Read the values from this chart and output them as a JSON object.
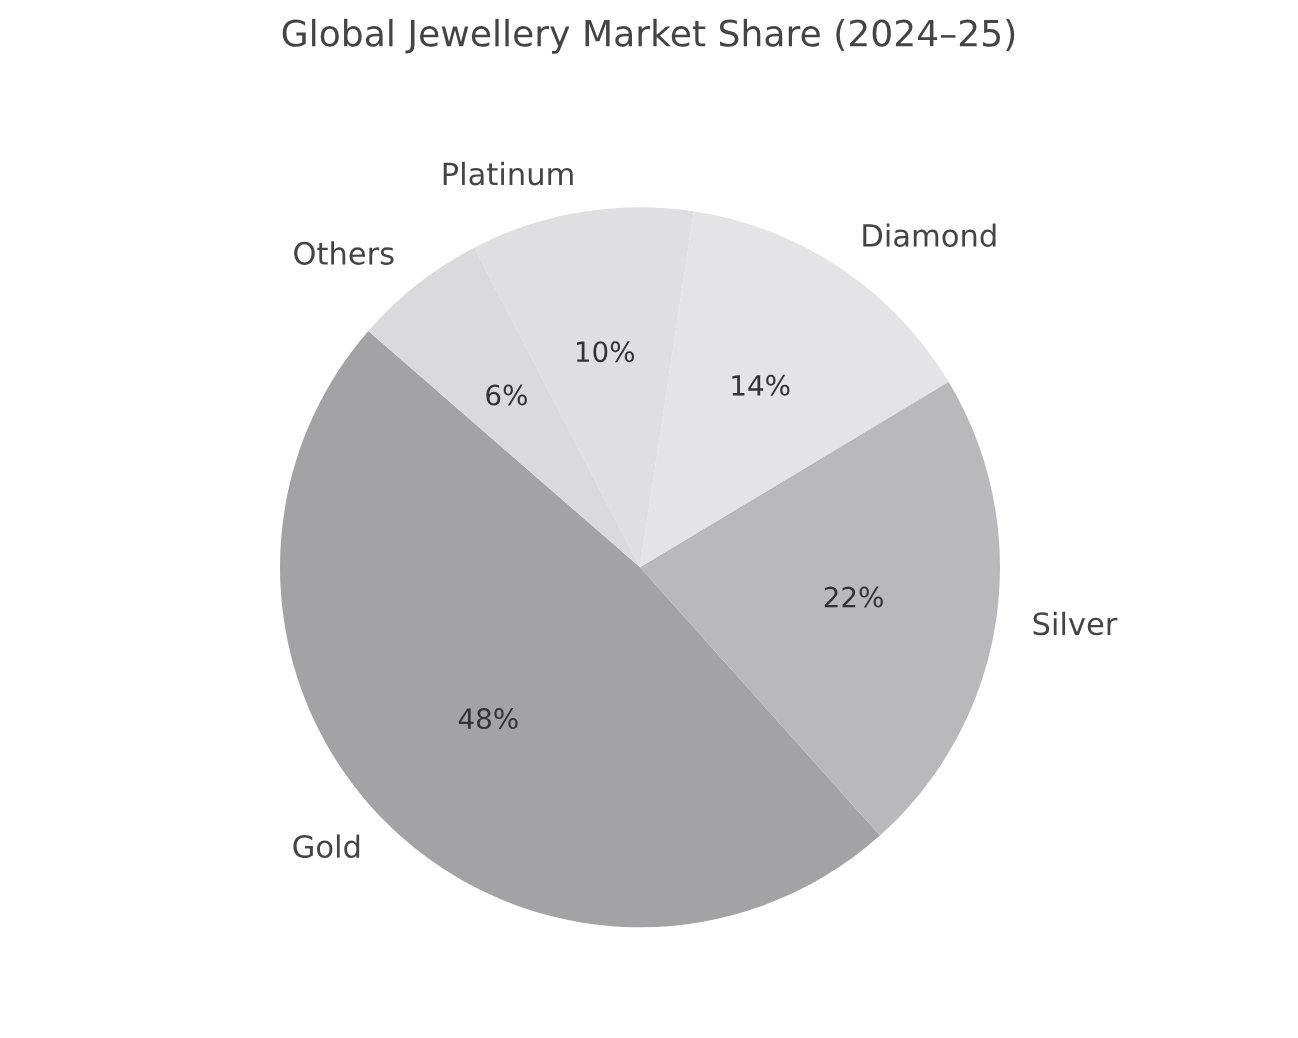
{
  "chart_data": {
    "type": "pie",
    "title": "Global Jewellery Market Share (2024–25)",
    "categories": [
      "Gold",
      "Silver",
      "Diamond",
      "Platinum",
      "Others"
    ],
    "values": [
      48,
      22,
      14,
      10,
      6
    ],
    "colors": [
      "#a3a3a5",
      "#b9b9bc",
      "#e4e4e6",
      "#dfdfe1",
      "#dadadc"
    ],
    "value_labels": [
      "48%",
      "22%",
      "14%",
      "10%",
      "6%"
    ]
  }
}
